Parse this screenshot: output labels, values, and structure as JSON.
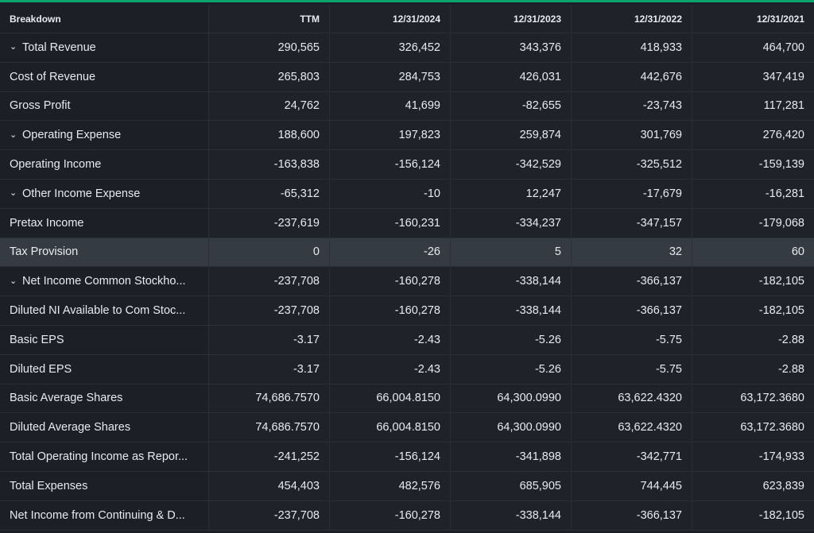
{
  "header": {
    "breakdown": "Breakdown",
    "columns": [
      "TTM",
      "12/31/2024",
      "12/31/2023",
      "12/31/2022",
      "12/31/2021"
    ]
  },
  "rows": [
    {
      "label": "Total Revenue",
      "expandable": true,
      "values": [
        "290,565",
        "326,452",
        "343,376",
        "418,933",
        "464,700"
      ]
    },
    {
      "label": "Cost of Revenue",
      "expandable": false,
      "values": [
        "265,803",
        "284,753",
        "426,031",
        "442,676",
        "347,419"
      ]
    },
    {
      "label": "Gross Profit",
      "expandable": false,
      "values": [
        "24,762",
        "41,699",
        "-82,655",
        "-23,743",
        "117,281"
      ]
    },
    {
      "label": "Operating Expense",
      "expandable": true,
      "values": [
        "188,600",
        "197,823",
        "259,874",
        "301,769",
        "276,420"
      ]
    },
    {
      "label": "Operating Income",
      "expandable": false,
      "values": [
        "-163,838",
        "-156,124",
        "-342,529",
        "-325,512",
        "-159,139"
      ]
    },
    {
      "label": "Other Income Expense",
      "expandable": true,
      "values": [
        "-65,312",
        "-10",
        "12,247",
        "-17,679",
        "-16,281"
      ]
    },
    {
      "label": "Pretax Income",
      "expandable": false,
      "values": [
        "-237,619",
        "-160,231",
        "-334,237",
        "-347,157",
        "-179,068"
      ]
    },
    {
      "label": "Tax Provision",
      "expandable": false,
      "highlight": true,
      "values": [
        "0",
        "-26",
        "5",
        "32",
        "60"
      ]
    },
    {
      "label": "Net Income Common Stockho...",
      "expandable": true,
      "values": [
        "-237,708",
        "-160,278",
        "-338,144",
        "-366,137",
        "-182,105"
      ]
    },
    {
      "label": "Diluted NI Available to Com Stoc...",
      "expandable": false,
      "values": [
        "-237,708",
        "-160,278",
        "-338,144",
        "-366,137",
        "-182,105"
      ]
    },
    {
      "label": "Basic EPS",
      "expandable": false,
      "values": [
        "-3.17",
        "-2.43",
        "-5.26",
        "-5.75",
        "-2.88"
      ]
    },
    {
      "label": "Diluted EPS",
      "expandable": false,
      "values": [
        "-3.17",
        "-2.43",
        "-5.26",
        "-5.75",
        "-2.88"
      ]
    },
    {
      "label": "Basic Average Shares",
      "expandable": false,
      "values": [
        "74,686.7570",
        "66,004.8150",
        "64,300.0990",
        "63,622.4320",
        "63,172.3680"
      ]
    },
    {
      "label": "Diluted Average Shares",
      "expandable": false,
      "values": [
        "74,686.7570",
        "66,004.8150",
        "64,300.0990",
        "63,622.4320",
        "63,172.3680"
      ]
    },
    {
      "label": "Total Operating Income as Repor...",
      "expandable": false,
      "values": [
        "-241,252",
        "-156,124",
        "-341,898",
        "-342,771",
        "-174,933"
      ]
    },
    {
      "label": "Total Expenses",
      "expandable": false,
      "values": [
        "454,403",
        "482,576",
        "685,905",
        "744,445",
        "623,839"
      ]
    },
    {
      "label": "Net Income from Continuing & D...",
      "expandable": false,
      "values": [
        "-237,708",
        "-160,278",
        "-338,144",
        "-366,137",
        "-182,105"
      ]
    }
  ],
  "colors": {
    "accent_bar": "#0aa36a",
    "background": "#1b1e24",
    "highlight_row": "#353b43",
    "text": "#e8eaee"
  },
  "icons": {
    "expand": "chevron-down-icon"
  }
}
